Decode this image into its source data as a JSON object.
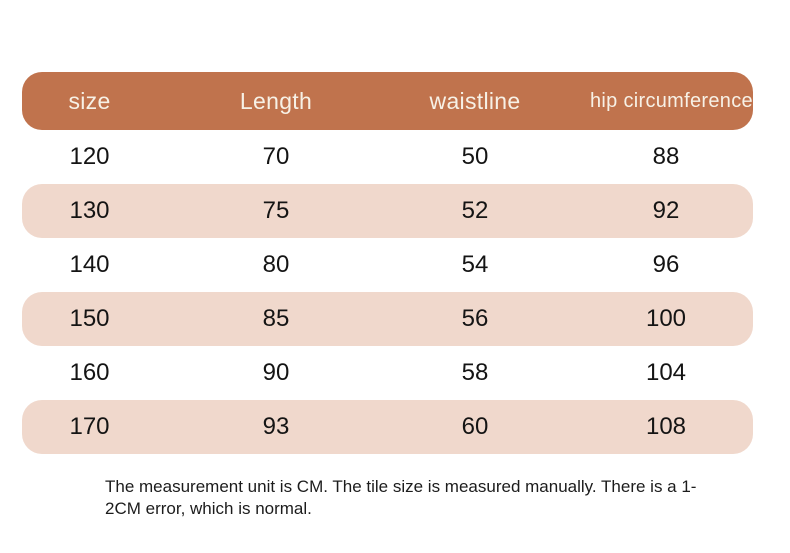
{
  "theme": {
    "header_bg": "#c0734d",
    "header_text": "#f7f1e6",
    "row_alt_bg": "#f0d8cc",
    "body_bg": "#ffffff",
    "data_text": "#141414"
  },
  "table": {
    "columns": [
      {
        "id": "size",
        "label": "size"
      },
      {
        "id": "length",
        "label": "Length"
      },
      {
        "id": "waistline",
        "label": "waistline"
      },
      {
        "id": "hip",
        "label": "hip circumference"
      }
    ],
    "rows": [
      {
        "size": "120",
        "length": "70",
        "waistline": "50",
        "hip": "88"
      },
      {
        "size": "130",
        "length": "75",
        "waistline": "52",
        "hip": "92"
      },
      {
        "size": "140",
        "length": "80",
        "waistline": "54",
        "hip": "96"
      },
      {
        "size": "150",
        "length": "85",
        "waistline": "56",
        "hip": "100"
      },
      {
        "size": "160",
        "length": "90",
        "waistline": "58",
        "hip": "104"
      },
      {
        "size": "170",
        "length": "93",
        "waistline": "60",
        "hip": "108"
      }
    ]
  },
  "footer": {
    "note": "The measurement unit is CM. The tile size is measured manually. There is a 1-2CM error, which is normal."
  }
}
